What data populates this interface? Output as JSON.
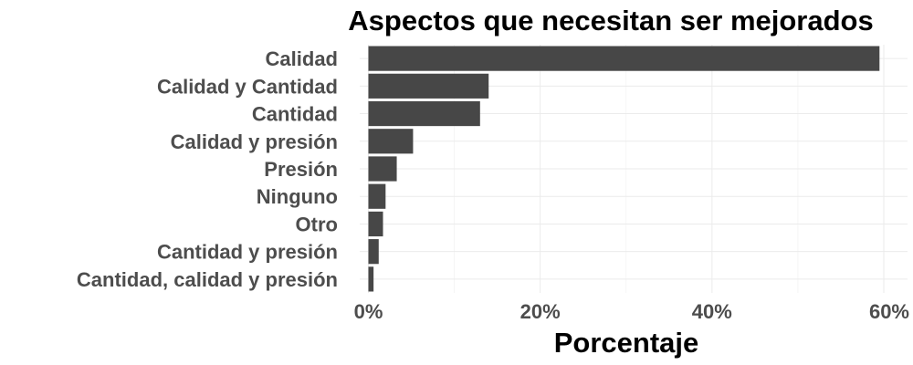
{
  "chart_data": {
    "type": "bar",
    "orientation": "horizontal",
    "title": "Aspectos que necesitan ser mejorados",
    "xlabel": "Porcentaje",
    "ylabel": "",
    "categories": [
      "Calidad",
      "Calidad y Cantidad",
      "Cantidad",
      "Calidad y presión",
      "Presión",
      "Ninguno",
      "Otro",
      "Cantidad y presión",
      "Cantidad, calidad y presión"
    ],
    "values": [
      59.5,
      14.0,
      13.0,
      5.2,
      3.3,
      2.0,
      1.7,
      1.2,
      0.6
    ],
    "xlim": [
      0,
      62.5
    ],
    "xticks": [
      0,
      20,
      40,
      60
    ],
    "xtick_labels": [
      "0%",
      "20%",
      "40%",
      "60%"
    ],
    "bar_color": "#474747",
    "grid": true,
    "legend": "none"
  }
}
